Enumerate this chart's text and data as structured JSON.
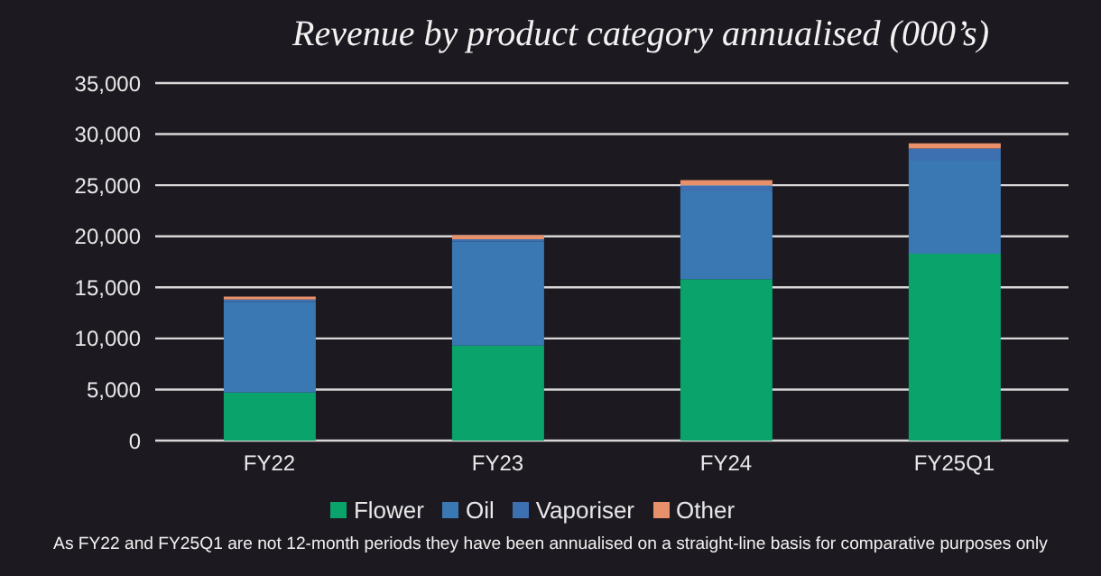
{
  "chart_data": {
    "type": "bar",
    "title": "Revenue by product category annualised (000’s)",
    "categories": [
      "FY22",
      "FY23",
      "FY24",
      "FY25Q1"
    ],
    "stacked": true,
    "series": [
      {
        "name": "Flower",
        "color": "#0aa36b",
        "values": [
          4700,
          9300,
          15800,
          18300
        ]
      },
      {
        "name": "Oil",
        "color": "#3a78b4",
        "values": [
          8900,
          10200,
          8600,
          9100
        ]
      },
      {
        "name": "Vaporiser",
        "color": "#3d70b0",
        "values": [
          200,
          200,
          600,
          1200
        ]
      },
      {
        "name": "Other",
        "color": "#e8906a",
        "values": [
          300,
          400,
          500,
          500
        ]
      }
    ],
    "ylim": [
      0,
      35000
    ],
    "yticks": [
      0,
      {
        "value": 5000,
        "label": "5,000"
      },
      {
        "value": 10000,
        "label": "10,000"
      },
      {
        "value": 15000,
        "label": "15,000"
      },
      {
        "value": 20000,
        "label": "20,000"
      },
      {
        "value": 25000,
        "label": "25,000"
      },
      {
        "value": 30000,
        "label": "30,000"
      },
      {
        "value": 35000,
        "label": "35,000"
      }
    ],
    "grid": "y",
    "legend": "bottom",
    "annotations": [
      "As FY22 and FY25Q1 are not 12-month periods they have been annualised on a straight-line basis for comparative purposes only"
    ]
  }
}
